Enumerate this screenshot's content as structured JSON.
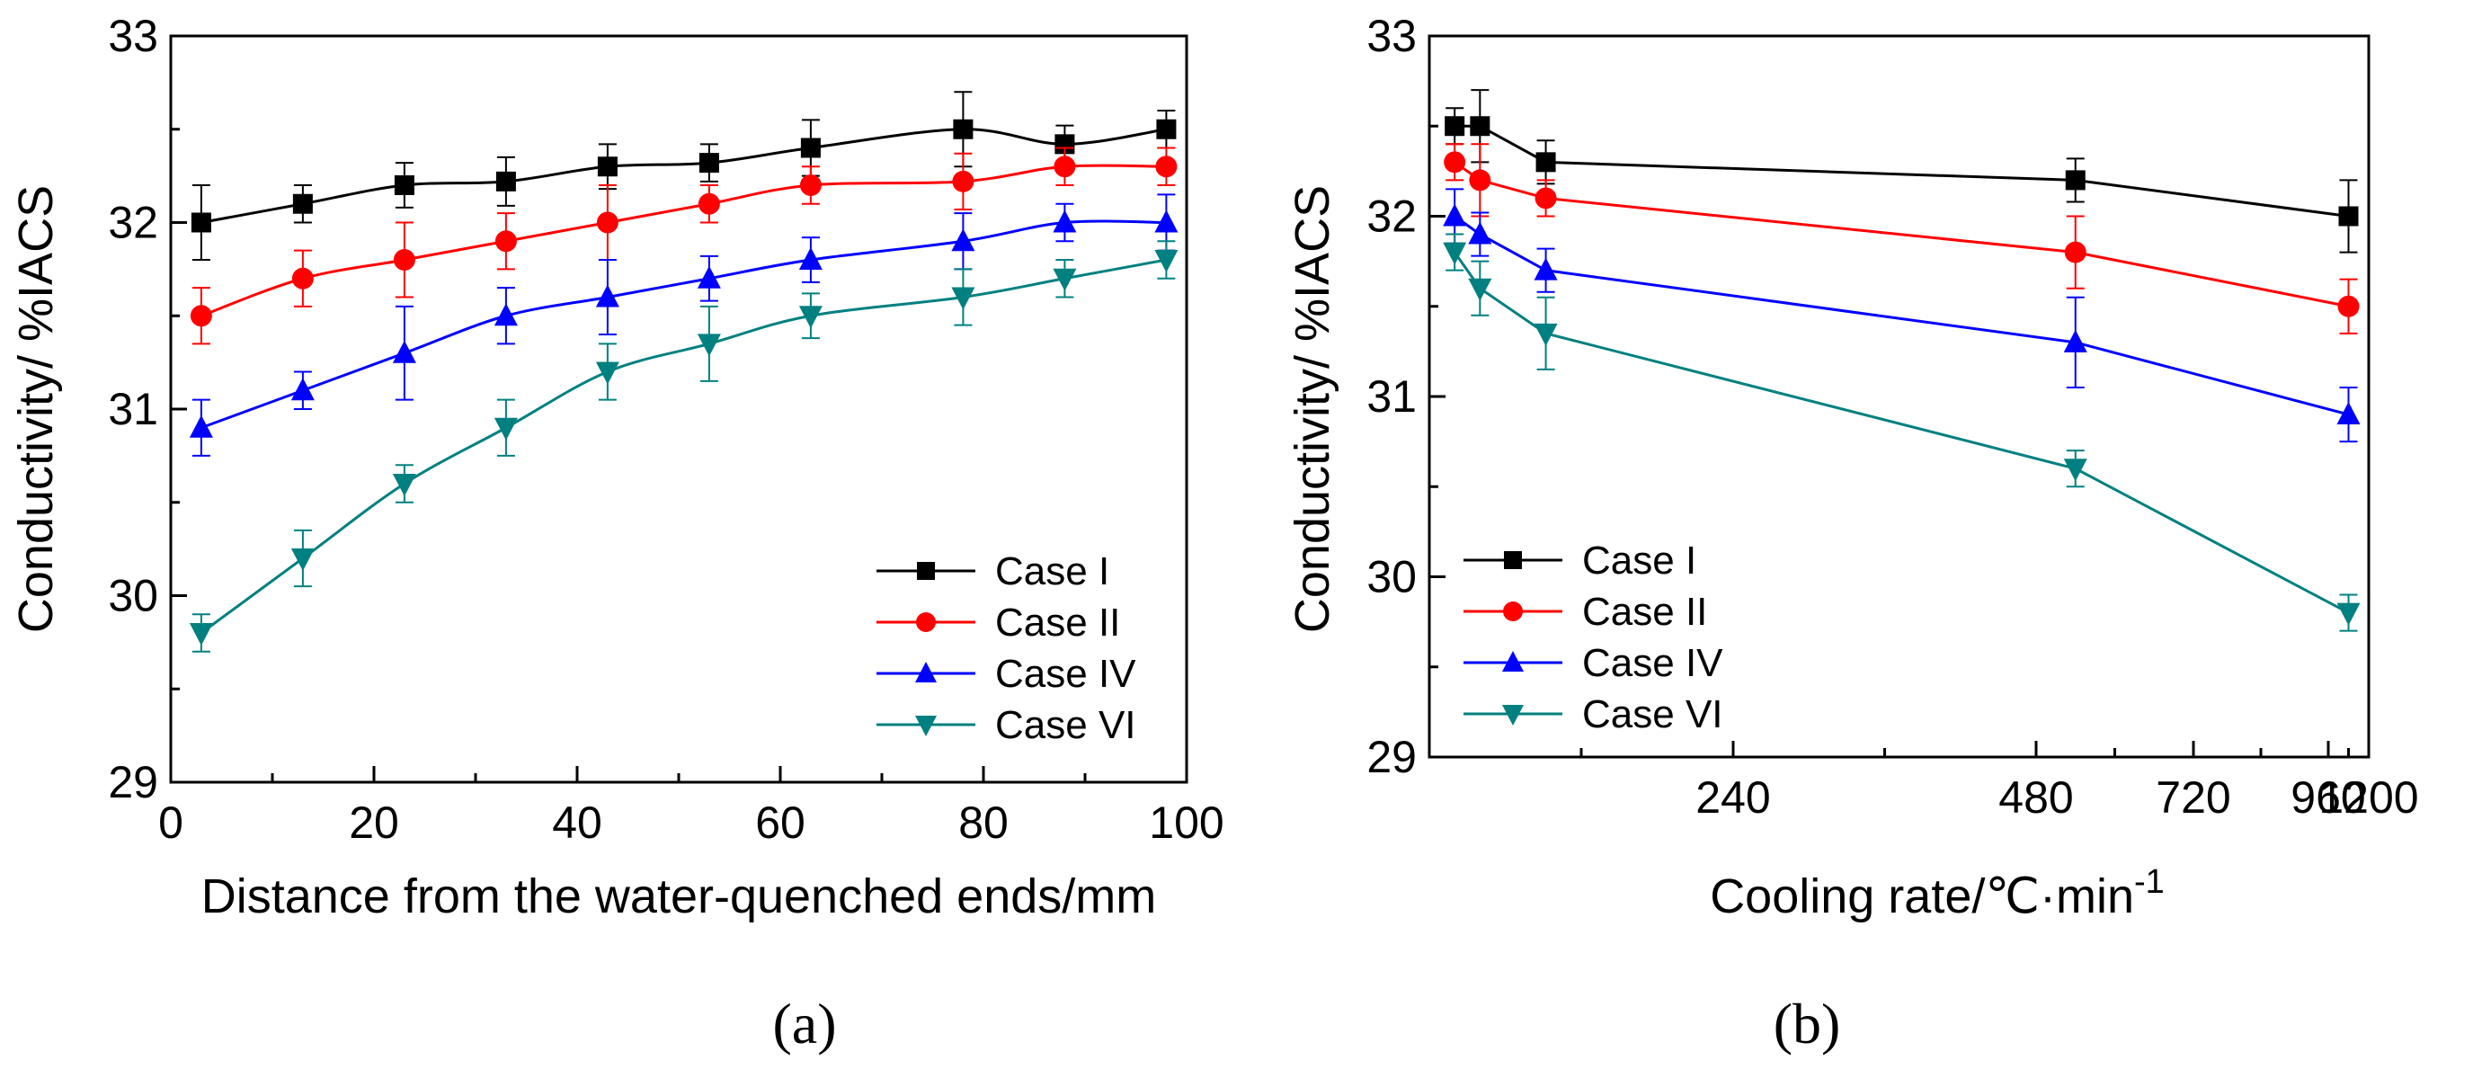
{
  "chart_data": [
    {
      "type": "line",
      "panel_label": "(a)",
      "xlabel": "Distance from the water-quenched ends/mm",
      "ylabel": "Conductivity/ %IACS",
      "xlim": [
        0,
        100
      ],
      "ylim": [
        29,
        33
      ],
      "xticks": [
        0,
        20,
        40,
        60,
        80,
        100
      ],
      "yticks": [
        29,
        30,
        31,
        32,
        33
      ],
      "x": [
        3,
        13,
        23,
        33,
        43,
        53,
        63,
        78,
        88,
        98
      ],
      "legend_position": "bottom-right",
      "series": [
        {
          "name": "Case I",
          "marker": "square",
          "color": "#000000",
          "values": [
            32.0,
            32.1,
            32.2,
            32.22,
            32.3,
            32.32,
            32.4,
            32.5,
            32.42,
            32.5
          ],
          "errors": [
            0.2,
            0.1,
            0.12,
            0.13,
            0.12,
            0.1,
            0.15,
            0.2,
            0.1,
            0.1
          ]
        },
        {
          "name": "Case II",
          "marker": "circle",
          "color": "#ff0000",
          "values": [
            31.5,
            31.7,
            31.8,
            31.9,
            32.0,
            32.1,
            32.2,
            32.22,
            32.3,
            32.3
          ],
          "errors": [
            0.15,
            0.15,
            0.2,
            0.15,
            0.2,
            0.1,
            0.1,
            0.15,
            0.1,
            0.1
          ]
        },
        {
          "name": "Case IV",
          "marker": "triangle-up",
          "color": "#0000ff",
          "values": [
            30.9,
            31.1,
            31.3,
            31.5,
            31.6,
            31.7,
            31.8,
            31.9,
            32.0,
            32.0
          ],
          "errors": [
            0.15,
            0.1,
            0.25,
            0.15,
            0.2,
            0.12,
            0.12,
            0.15,
            0.1,
            0.15
          ]
        },
        {
          "name": "Case VI",
          "marker": "triangle-down",
          "color": "#008080",
          "values": [
            29.8,
            30.2,
            30.6,
            30.9,
            31.2,
            31.35,
            31.5,
            31.6,
            31.7,
            31.8
          ],
          "errors": [
            0.1,
            0.15,
            0.1,
            0.15,
            0.15,
            0.2,
            0.12,
            0.15,
            0.1,
            0.1
          ]
        }
      ]
    },
    {
      "type": "line",
      "panel_label": "(b)",
      "xlabel": "Cooling rate/℃·min",
      "xlabel_superscript": "-1",
      "ylabel": "Conductivity/ %IACS",
      "xlim": [
        0,
        1200
      ],
      "xaxis_note": "non-linear axis",
      "xtick_labels": [
        "240",
        "480",
        "720",
        "960",
        "1200"
      ],
      "ylim": [
        29,
        33
      ],
      "yticks": [
        29,
        30,
        31,
        32,
        33
      ],
      "x": [
        20,
        40,
        92,
        540,
        1080
      ],
      "legend_position": "bottom-left",
      "series": [
        {
          "name": "Case I",
          "marker": "square",
          "color": "#000000",
          "values": [
            32.5,
            32.5,
            32.3,
            32.2,
            32.0
          ],
          "errors": [
            0.1,
            0.2,
            0.12,
            0.12,
            0.2
          ]
        },
        {
          "name": "Case II",
          "marker": "circle",
          "color": "#ff0000",
          "values": [
            32.3,
            32.2,
            32.1,
            31.8,
            31.5
          ],
          "errors": [
            0.1,
            0.2,
            0.1,
            0.2,
            0.15
          ]
        },
        {
          "name": "Case IV",
          "marker": "triangle-up",
          "color": "#0000ff",
          "values": [
            32.0,
            31.9,
            31.7,
            31.3,
            30.9
          ],
          "errors": [
            0.15,
            0.12,
            0.12,
            0.25,
            0.15
          ]
        },
        {
          "name": "Case VI",
          "marker": "triangle-down",
          "color": "#008080",
          "values": [
            31.8,
            31.6,
            31.35,
            30.6,
            29.8
          ],
          "errors": [
            0.1,
            0.15,
            0.2,
            0.1,
            0.1
          ]
        }
      ]
    }
  ]
}
